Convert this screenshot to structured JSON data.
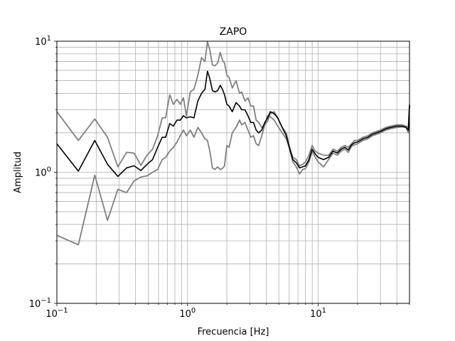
{
  "chart_data": {
    "type": "line",
    "title": "ZAPO",
    "xlabel": "Frecuencia [Hz]",
    "ylabel": "Amplitud",
    "x_scale": "log",
    "y_scale": "log",
    "xlim": [
      0.1,
      50
    ],
    "ylim": [
      0.1,
      10
    ],
    "grid": true,
    "x_ticks": [
      {
        "value": 0.1,
        "base": "10",
        "exp": "−1"
      },
      {
        "value": 1,
        "base": "10",
        "exp": "0"
      },
      {
        "value": 10,
        "base": "10",
        "exp": "1"
      }
    ],
    "y_ticks": [
      {
        "value": 0.1,
        "base": "10",
        "exp": "−1"
      },
      {
        "value": 1,
        "base": "10",
        "exp": "0"
      },
      {
        "value": 10,
        "base": "10",
        "exp": "1"
      }
    ],
    "series": [
      {
        "color": "#808080",
        "x": [
          0.1,
          0.146,
          0.195,
          0.244,
          0.293,
          0.342,
          0.39,
          0.44,
          0.49,
          0.54,
          0.59,
          0.64,
          0.68,
          0.73,
          0.78,
          0.83,
          0.88,
          0.93,
          0.98,
          1.05,
          1.12,
          1.2,
          1.28,
          1.36,
          1.42,
          1.48,
          1.55,
          1.62,
          1.7,
          1.78,
          1.85,
          1.92,
          2.0,
          2.08,
          2.2,
          2.35,
          2.5,
          2.6,
          2.75,
          2.9,
          3.05,
          3.2,
          3.35,
          3.5,
          3.7,
          3.9,
          4.1,
          4.3,
          4.6,
          4.9,
          5.3,
          5.7,
          6.0,
          6.4,
          6.8,
          7.2,
          7.6,
          8.0,
          8.5,
          9.0,
          9.5,
          10.0,
          11.0,
          12.0,
          13.0,
          14.0,
          15.0,
          16.0,
          17.0,
          18.0,
          19.0,
          20.0,
          22.0,
          24.0,
          26.0,
          28.0,
          30.0,
          33.0,
          36.0,
          40.0,
          44.0,
          47.0,
          49.0,
          50.0
        ],
        "y": [
          0.33,
          0.28,
          0.95,
          0.43,
          0.74,
          0.7,
          0.86,
          0.92,
          0.94,
          1.0,
          1.05,
          1.25,
          1.3,
          1.45,
          1.55,
          1.7,
          1.9,
          2.1,
          1.9,
          2.1,
          1.85,
          2.2,
          2.0,
          1.8,
          1.75,
          1.45,
          1.08,
          1.05,
          1.1,
          1.05,
          1.07,
          1.12,
          1.6,
          1.55,
          2.0,
          2.2,
          2.5,
          2.3,
          2.4,
          2.1,
          1.85,
          1.9,
          1.65,
          1.6,
          1.9,
          2.3,
          2.7,
          2.65,
          2.5,
          2.25,
          2.0,
          1.8,
          1.55,
          1.2,
          1.1,
          0.97,
          1.05,
          1.07,
          1.2,
          1.45,
          1.3,
          1.2,
          1.1,
          1.25,
          1.4,
          1.35,
          1.45,
          1.5,
          1.42,
          1.58,
          1.62,
          1.65,
          1.75,
          1.8,
          1.9,
          1.95,
          2.0,
          2.1,
          2.15,
          2.2,
          2.22,
          2.2,
          2.0,
          3.2
        ]
      },
      {
        "color": "#808080",
        "x": [
          0.1,
          0.146,
          0.195,
          0.244,
          0.293,
          0.342,
          0.39,
          0.44,
          0.49,
          0.54,
          0.59,
          0.64,
          0.68,
          0.73,
          0.78,
          0.83,
          0.88,
          0.93,
          0.98,
          1.05,
          1.12,
          1.2,
          1.28,
          1.36,
          1.42,
          1.48,
          1.55,
          1.62,
          1.7,
          1.78,
          1.85,
          1.92,
          2.0,
          2.08,
          2.2,
          2.35,
          2.5,
          2.6,
          2.75,
          2.9,
          3.05,
          3.2,
          3.35,
          3.5,
          3.7,
          3.9,
          4.1,
          4.3,
          4.6,
          4.9,
          5.3,
          5.7,
          6.0,
          6.4,
          6.8,
          7.2,
          7.6,
          8.0,
          8.5,
          9.0,
          9.5,
          10.0,
          11.0,
          12.0,
          13.0,
          14.0,
          15.0,
          16.0,
          17.0,
          18.0,
          19.0,
          20.0,
          22.0,
          24.0,
          26.0,
          28.0,
          30.0,
          33.0,
          36.0,
          40.0,
          44.0,
          47.0,
          49.0,
          50.0
        ],
        "y": [
          2.9,
          1.75,
          2.55,
          1.85,
          1.1,
          1.42,
          1.4,
          1.13,
          1.35,
          1.5,
          1.9,
          2.6,
          2.6,
          3.9,
          3.3,
          3.6,
          3.3,
          3.7,
          2.7,
          4.1,
          4.3,
          5.5,
          7.5,
          7.0,
          9.9,
          8.6,
          6.6,
          6.5,
          6.8,
          8.2,
          7.2,
          6.8,
          5.5,
          5.3,
          4.4,
          5.0,
          4.0,
          4.1,
          3.5,
          3.7,
          3.2,
          3.2,
          2.5,
          2.4,
          2.2,
          2.3,
          2.45,
          2.8,
          2.9,
          2.6,
          2.2,
          2.0,
          1.6,
          1.3,
          1.25,
          1.12,
          1.15,
          1.2,
          1.35,
          1.6,
          1.45,
          1.4,
          1.35,
          1.35,
          1.5,
          1.45,
          1.55,
          1.6,
          1.55,
          1.65,
          1.75,
          1.75,
          1.85,
          1.9,
          2.0,
          2.05,
          2.1,
          2.2,
          2.25,
          2.3,
          2.3,
          2.25,
          2.2,
          3.3
        ]
      },
      {
        "color": "#000000",
        "x": [
          0.1,
          0.146,
          0.195,
          0.244,
          0.293,
          0.342,
          0.39,
          0.44,
          0.49,
          0.54,
          0.59,
          0.64,
          0.68,
          0.73,
          0.78,
          0.83,
          0.88,
          0.93,
          0.98,
          1.05,
          1.12,
          1.2,
          1.28,
          1.36,
          1.42,
          1.48,
          1.55,
          1.62,
          1.7,
          1.78,
          1.85,
          1.92,
          2.0,
          2.08,
          2.2,
          2.35,
          2.5,
          2.6,
          2.75,
          2.9,
          3.05,
          3.2,
          3.35,
          3.5,
          3.7,
          3.9,
          4.1,
          4.3,
          4.6,
          4.9,
          5.3,
          5.7,
          6.0,
          6.4,
          6.8,
          7.2,
          7.6,
          8.0,
          8.5,
          9.0,
          9.5,
          10.0,
          11.0,
          12.0,
          13.0,
          14.0,
          15.0,
          16.0,
          17.0,
          18.0,
          19.0,
          20.0,
          22.0,
          24.0,
          26.0,
          28.0,
          30.0,
          33.0,
          36.0,
          40.0,
          44.0,
          47.0,
          49.0,
          50.0
        ],
        "y": [
          1.65,
          1.02,
          1.75,
          1.15,
          0.93,
          1.08,
          1.12,
          1.03,
          1.15,
          1.25,
          1.55,
          1.85,
          1.85,
          2.35,
          2.25,
          2.5,
          2.5,
          2.7,
          2.6,
          2.65,
          2.6,
          3.5,
          4.0,
          4.3,
          5.9,
          5.2,
          4.2,
          4.1,
          4.2,
          4.6,
          4.3,
          3.9,
          3.3,
          3.2,
          2.9,
          3.4,
          3.2,
          3.0,
          3.0,
          2.7,
          2.4,
          2.4,
          2.1,
          2.0,
          2.1,
          2.4,
          2.6,
          2.9,
          2.8,
          2.6,
          2.2,
          1.9,
          1.55,
          1.25,
          1.18,
          1.08,
          1.1,
          1.12,
          1.25,
          1.5,
          1.38,
          1.3,
          1.25,
          1.3,
          1.45,
          1.4,
          1.5,
          1.55,
          1.48,
          1.62,
          1.68,
          1.7,
          1.8,
          1.85,
          1.95,
          2.0,
          2.05,
          2.15,
          2.2,
          2.25,
          2.25,
          2.2,
          2.1,
          3.25
        ]
      }
    ]
  }
}
